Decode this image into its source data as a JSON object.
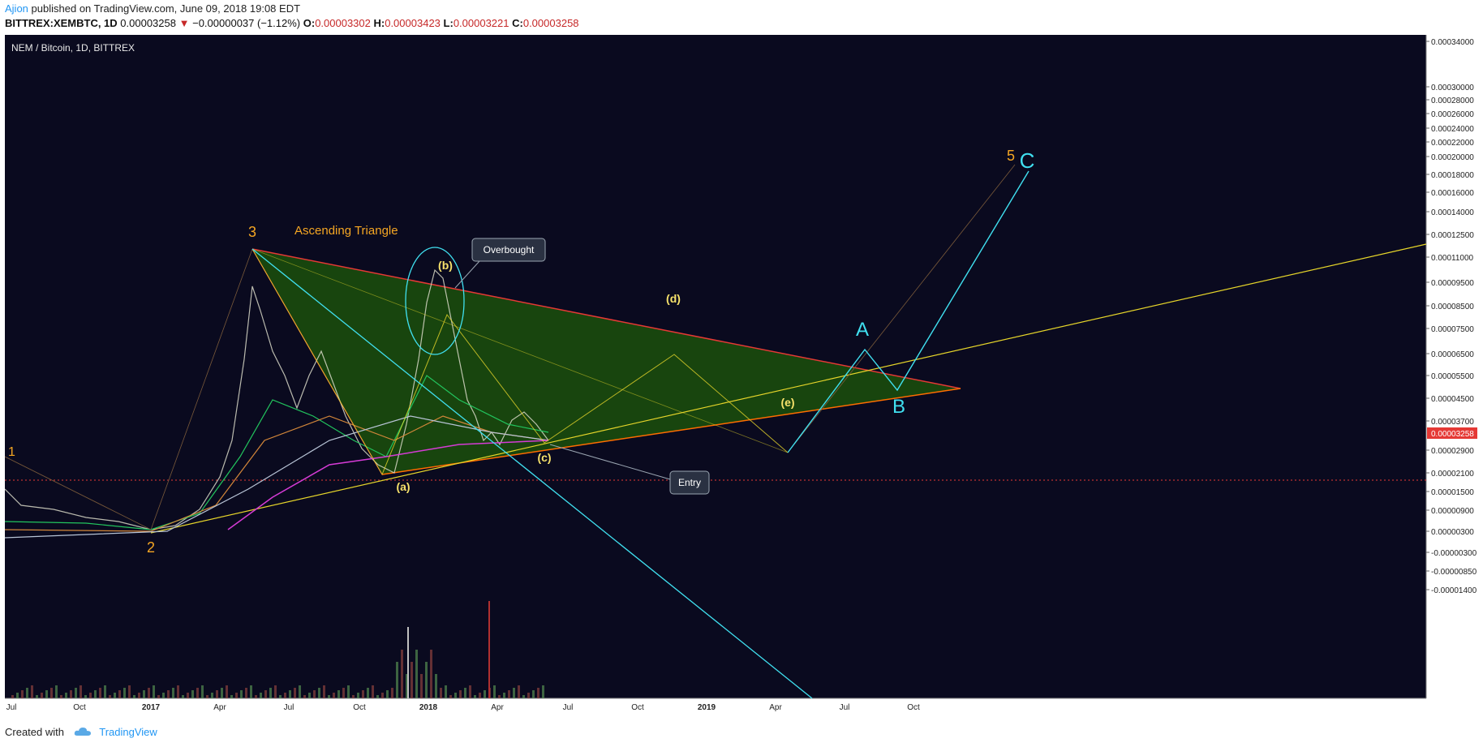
{
  "header": {
    "publisher": "Ajion",
    "published_text": "published on TradingView.com, June 09, 2018 19:08 EDT",
    "symbol": "BITTREX:XEMBTC, 1D",
    "last": "0.00003258",
    "change": "−0.00000037 (−1.12%)",
    "open_label": "O:",
    "open": "0.00003302",
    "high_label": "H:",
    "high": "0.00003423",
    "low_label": "L:",
    "low": "0.00003221",
    "close_label": "C:",
    "close": "0.00003258"
  },
  "chart_title": "NEM / Bitcoin, 1D, BITTREX",
  "footer": {
    "created_with": "Created with",
    "brand": "TradingView"
  },
  "colors": {
    "background": "#0a0a1f",
    "triangle_fill": "#1e5a0a",
    "resistance": "#e53935",
    "support": "#ff6d00",
    "trend_yellow": "#e6d52a",
    "cyan": "#40e0f0",
    "orange_label": "#f5a623",
    "price_line": "#e53935"
  },
  "chart_data": {
    "type": "line",
    "title": "NEM / Bitcoin, 1D, BITTREX",
    "x_ticks": [
      "Jul",
      "Oct",
      "2017",
      "Apr",
      "Jul",
      "Oct",
      "2018",
      "Apr",
      "Jul",
      "Oct",
      "2019",
      "Apr",
      "Jul",
      "Oct"
    ],
    "y_ticks": [
      "0.00034000",
      "0.00030000",
      "0.00028000",
      "0.00026000",
      "0.00024000",
      "0.00022000",
      "0.00020000",
      "0.00018000",
      "0.00016000",
      "0.00014000",
      "0.00012500",
      "0.00011000",
      "0.00009500",
      "0.00008500",
      "0.00007500",
      "0.00006500",
      "0.00005500",
      "0.00004500",
      "0.00003700",
      "0.00003258",
      "0.00002900",
      "0.00002100",
      "0.00001500",
      "0.00000900",
      "0.00000300",
      "-0.00000300",
      "-0.00000850",
      "-0.00001400"
    ],
    "current_price": "0.00003258",
    "price_path": [
      [
        "2016-06",
        1.7e-05
      ],
      [
        "2016-09",
        1.05e-05
      ],
      [
        "2016-12",
        6.8e-06
      ],
      [
        "2017-01",
        5e-06
      ],
      [
        "2017-02",
        8e-06
      ],
      [
        "2017-03",
        1.4e-05
      ],
      [
        "2017-04",
        4.5e-05
      ],
      [
        "2017-05",
        0.00014
      ],
      [
        "2017-06",
        8.5e-05
      ],
      [
        "2017-07",
        6.5e-05
      ],
      [
        "2017-08",
        5.8e-05
      ],
      [
        "2017-09",
        7.5e-05
      ],
      [
        "2017-10",
        4.8e-05
      ],
      [
        "2017-11",
        3.5e-05
      ],
      [
        "2017-12",
        2.4e-05
      ],
      [
        "2018-01",
        0.000118
      ],
      [
        "2018-02",
        7.8e-05
      ],
      [
        "2018-03",
        3.8e-05
      ],
      [
        "2018-04",
        3e-05
      ],
      [
        "2018-05",
        4.7e-05
      ],
      [
        "2018-06",
        3.258e-05
      ]
    ],
    "annotations": {
      "wave_labels": [
        "1",
        "2",
        "3",
        "5"
      ],
      "abc_labels": [
        "(a)",
        "(b)",
        "(c)",
        "(d)",
        "(e)"
      ],
      "projection_labels": [
        "A",
        "B",
        "C"
      ],
      "pattern_title": "Ascending Triangle",
      "callouts": [
        "Overbought",
        "Entry"
      ]
    }
  }
}
